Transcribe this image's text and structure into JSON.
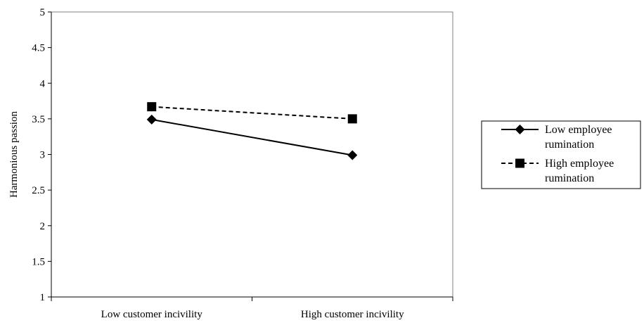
{
  "chart_data": {
    "type": "line",
    "title": "",
    "xlabel": "",
    "ylabel": "Harmonious passion",
    "categories": [
      "Low customer incivility",
      "High customer incivility"
    ],
    "ylim": [
      1,
      5
    ],
    "yticks": [
      "1",
      "1.5",
      "2",
      "2.5",
      "3",
      "3.5",
      "4",
      "4.5",
      "5"
    ],
    "grid": false,
    "legend_position": "right",
    "series": [
      {
        "name_lines": [
          "Low employee",
          "rumination"
        ],
        "values": [
          3.49,
          2.99
        ],
        "marker": "diamond",
        "line_style": "solid",
        "color": "#000000"
      },
      {
        "name_lines": [
          "High employee",
          "rumination"
        ],
        "values": [
          3.67,
          3.5
        ],
        "marker": "square",
        "line_style": "dashed",
        "color": "#000000"
      }
    ]
  }
}
